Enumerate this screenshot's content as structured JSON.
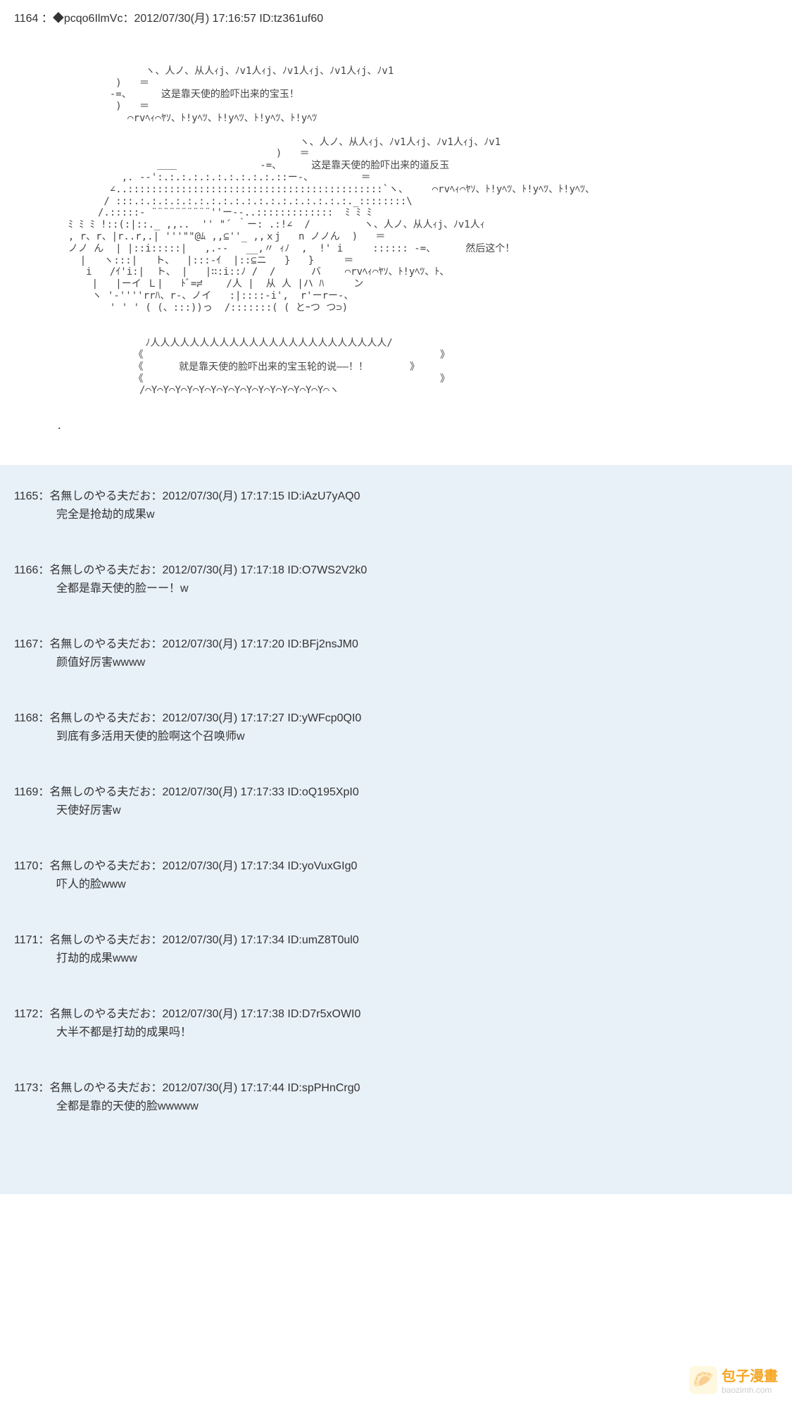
{
  "main_post": {
    "number": "1164",
    "trip": "◆pcqo6IlmVc",
    "date": "2012/07/30(月) 17:16:57",
    "id": "ID:tz361uf60",
    "ascii_bubble1": "这是靠天使的脸吓出来的宝玉！",
    "ascii_bubble2": "这是靠天使的脸吓出来的道反玉",
    "ascii_bubble3": "然后这个！",
    "ascii_bubble4": "就是靠天使的脸吓出来的宝玉轮的说——！！"
  },
  "replies": [
    {
      "number": "1165",
      "name": "名無しのやる夫だお",
      "date": "2012/07/30(月) 17:17:15",
      "id": "ID:iAzU7yAQ0",
      "body": "完全是抢劫的成果w"
    },
    {
      "number": "1166",
      "name": "名無しのやる夫だお",
      "date": "2012/07/30(月) 17:17:18",
      "id": "ID:O7WS2V2k0",
      "body": "全都是靠天使的脸ーー！w"
    },
    {
      "number": "1167",
      "name": "名無しのやる夫だお",
      "date": "2012/07/30(月) 17:17:20",
      "id": "ID:BFj2nsJM0",
      "body": "颜值好厉害wwww"
    },
    {
      "number": "1168",
      "name": "名無しのやる夫だお",
      "date": "2012/07/30(月) 17:17:27",
      "id": "ID:yWFcp0QI0",
      "body": "到底有多活用天使的脸啊这个召唤师w"
    },
    {
      "number": "1169",
      "name": "名無しのやる夫だお",
      "date": "2012/07/30(月) 17:17:33",
      "id": "ID:oQ195XpI0",
      "body": "天使好厉害w"
    },
    {
      "number": "1170",
      "name": "名無しのやる夫だお",
      "date": "2012/07/30(月) 17:17:34",
      "id": "ID:yoVuxGIg0",
      "body": "吓人的脸www"
    },
    {
      "number": "1171",
      "name": "名無しのやる夫だお",
      "date": "2012/07/30(月) 17:17:34",
      "id": "ID:umZ8T0ul0",
      "body": "打劫的成果www"
    },
    {
      "number": "1172",
      "name": "名無しのやる夫だお",
      "date": "2012/07/30(月) 17:17:38",
      "id": "ID:D7r5xOWI0",
      "body": "大半不都是打劫的成果吗！"
    },
    {
      "number": "1173",
      "name": "名無しのやる夫だお",
      "date": "2012/07/30(月) 17:17:44",
      "id": "ID:spPHnCrg0",
      "body": "全都是靠的天使的脸wwwww"
    }
  ],
  "watermark": {
    "cn": "包子漫畫",
    "en": "baozimh.com",
    "icon": "🥟"
  },
  "colors": {
    "main_bg": "#ffffff",
    "reply_bg": "#e8f0f8",
    "text": "#333333",
    "watermark_orange": "#f5a623"
  }
}
